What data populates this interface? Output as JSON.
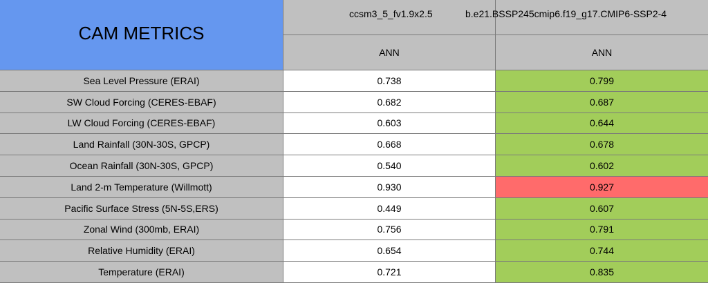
{
  "header": {
    "title": "CAM METRICS",
    "cases": [
      "ccsm3_5_fv1.9x2.5",
      "b.e21.BSSP245cmip6.f19_g17.CMIP6-SSP2-4"
    ],
    "periods": [
      "ANN",
      "ANN"
    ]
  },
  "table": {
    "rows": [
      [
        "Sea Level Pressure (ERAI)",
        "0.738",
        "0.799"
      ],
      [
        "SW Cloud Forcing (CERES-EBAF)",
        "0.682",
        "0.687"
      ],
      [
        "LW Cloud Forcing (CERES-EBAF)",
        "0.603",
        "0.644"
      ],
      [
        "Land Rainfall (30N-30S, GPCP)",
        "0.668",
        "0.678"
      ],
      [
        "Ocean Rainfall (30N-30S, GPCP)",
        "0.540",
        "0.602"
      ],
      [
        "Land 2-m Temperature (Willmott)",
        "0.930",
        "0.927"
      ],
      [
        "Pacific Surface Stress (5N-5S,ERS)",
        "0.449",
        "0.607"
      ],
      [
        "Zonal Wind (300mb, ERAI)",
        "0.756",
        "0.791"
      ],
      [
        "Relative Humidity (ERAI)",
        "0.654",
        "0.744"
      ],
      [
        "Temperature (ERAI)",
        "0.721",
        "0.835"
      ]
    ],
    "cell_colors": [
      "#a2cd5a",
      "#a2cd5a",
      "#a2cd5a",
      "#a2cd5a",
      "#a2cd5a",
      "#ff6b6b",
      "#a2cd5a",
      "#a2cd5a",
      "#a2cd5a",
      "#a2cd5a"
    ]
  }
}
